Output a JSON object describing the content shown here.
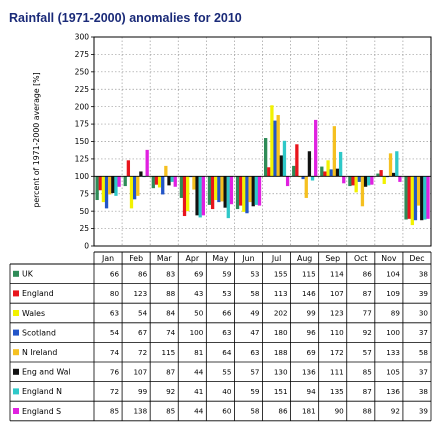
{
  "chart_data": {
    "type": "bar",
    "title": "Rainfall (1971-2000) anomalies for 2010",
    "ylabel": "percent of 1971-2000 average [%]",
    "ylim": [
      0,
      300
    ],
    "yticks": [
      0,
      25,
      50,
      75,
      100,
      125,
      150,
      175,
      200,
      225,
      250,
      275,
      300
    ],
    "baseline": 100,
    "grid": true,
    "categories": [
      "Jan",
      "Feb",
      "Mar",
      "Apr",
      "May",
      "Jun",
      "Jul",
      "Aug",
      "Sep",
      "Oct",
      "Nov",
      "Dec"
    ],
    "series": [
      {
        "name": "UK",
        "color": "#2e8b57",
        "values": [
          66,
          86,
          83,
          69,
          59,
          53,
          155,
          115,
          114,
          86,
          104,
          38
        ]
      },
      {
        "name": "England",
        "color": "#e8141c",
        "values": [
          80,
          123,
          88,
          43,
          53,
          58,
          113,
          146,
          107,
          87,
          109,
          39
        ]
      },
      {
        "name": "Wales",
        "color": "#f2f200",
        "values": [
          63,
          54,
          84,
          50,
          66,
          49,
          202,
          99,
          123,
          77,
          89,
          30
        ]
      },
      {
        "name": "Scotland",
        "color": "#2255c8",
        "values": [
          54,
          67,
          74,
          100,
          63,
          47,
          180,
          96,
          110,
          92,
          100,
          37
        ]
      },
      {
        "name": "N Ireland",
        "color": "#f5c020",
        "values": [
          74,
          72,
          115,
          81,
          64,
          63,
          188,
          69,
          172,
          57,
          133,
          58
        ]
      },
      {
        "name": "Eng and Wal",
        "color": "#111111",
        "values": [
          76,
          107,
          87,
          44,
          55,
          57,
          130,
          136,
          111,
          85,
          105,
          37
        ]
      },
      {
        "name": "England N",
        "color": "#2ec8c8",
        "values": [
          72,
          99,
          92,
          41,
          40,
          59,
          151,
          94,
          135,
          87,
          136,
          38
        ]
      },
      {
        "name": "England S",
        "color": "#e020e0",
        "values": [
          85,
          138,
          85,
          44,
          60,
          58,
          86,
          181,
          90,
          88,
          92,
          39
        ]
      }
    ]
  }
}
